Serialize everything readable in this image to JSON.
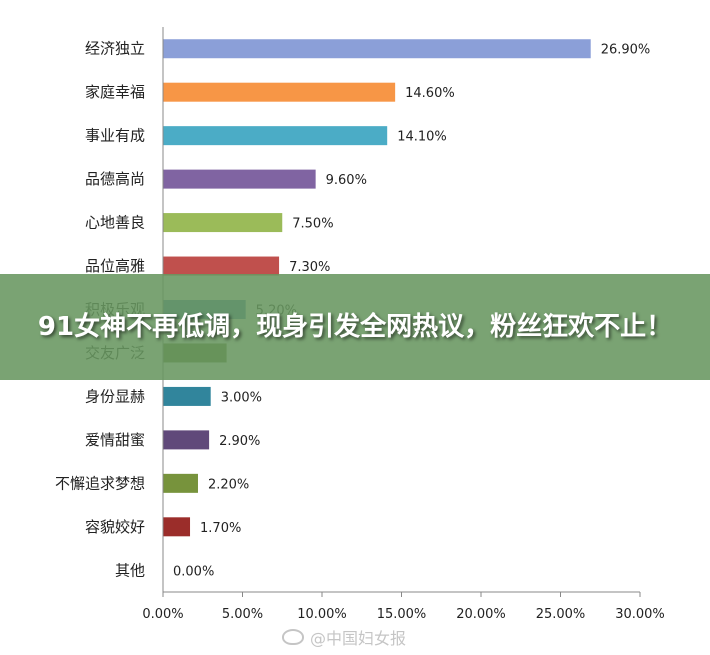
{
  "chart_data": {
    "type": "bar",
    "orientation": "horizontal",
    "categories": [
      "经济独立",
      "家庭幸福",
      "事业有成",
      "品德高尚",
      "心地善良",
      "品位高雅",
      "积极乐观",
      "交友广泛",
      "身份显赫",
      "爱情甜蜜",
      "不懈追求梦想",
      "容貌姣好",
      "其他"
    ],
    "values": [
      26.9,
      14.6,
      14.1,
      9.6,
      7.5,
      7.3,
      5.2,
      4.0,
      3.0,
      2.9,
      2.2,
      1.7,
      0.0
    ],
    "value_labels": [
      "26.90%",
      "14.60%",
      "14.10%",
      "9.60%",
      "7.50%",
      "7.30%",
      "5.20%",
      "",
      "3.00%",
      "2.90%",
      "2.20%",
      "1.70%",
      "0.00%"
    ],
    "colors": [
      "#8b9fd8",
      "#f79646",
      "#4bacc6",
      "#8064a2",
      "#9bbb59",
      "#c0504d",
      "#4f81bd",
      "#647a35",
      "#31859c",
      "#60497a",
      "#77933c",
      "#9b2d2a",
      "#4f81bd"
    ],
    "xlim": [
      0,
      30
    ],
    "x_ticks": [
      "0.00%",
      "5.00%",
      "10.00%",
      "15.00%",
      "20.00%",
      "25.00%",
      "30.00%"
    ],
    "grid": false,
    "legend": "none"
  },
  "overlay": {
    "banner_text": "91女神不再低调，现身引发全网热议，粉丝狂欢不止！",
    "watermark_text": "@中国妇女报"
  }
}
